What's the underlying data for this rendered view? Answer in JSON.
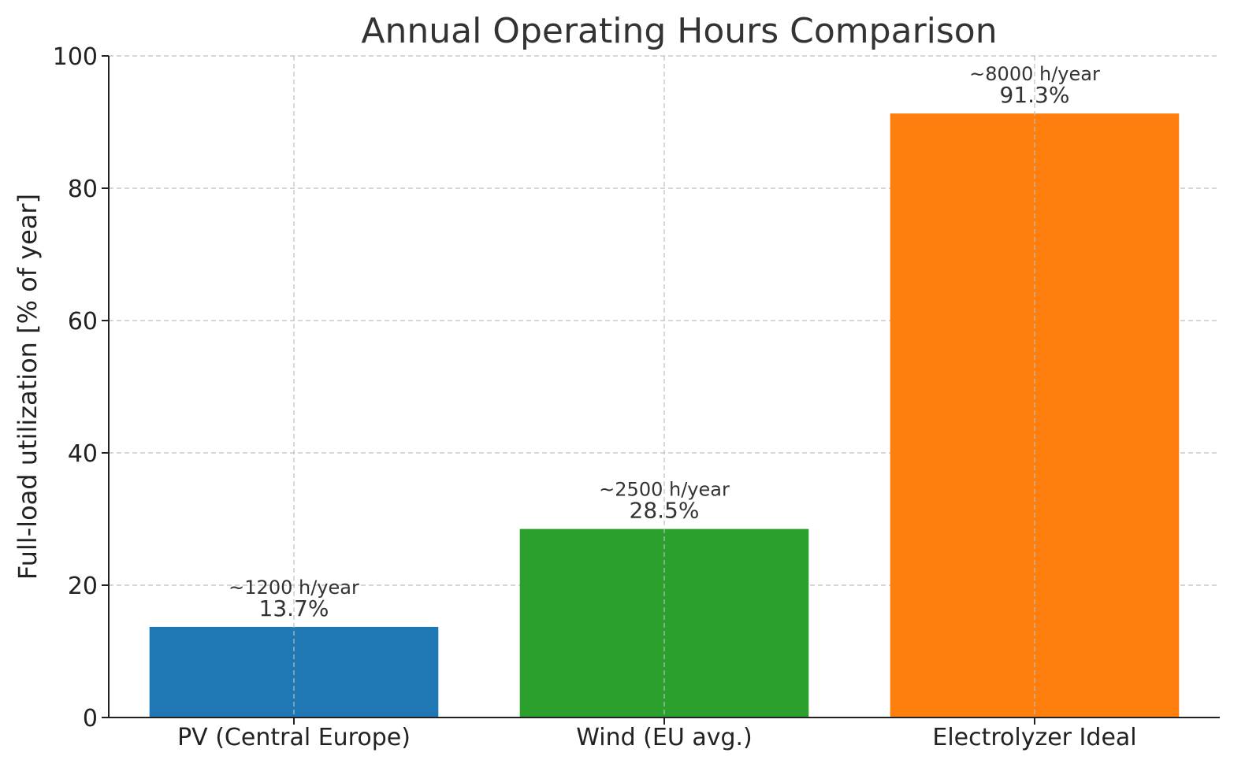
{
  "chart_data": {
    "type": "bar",
    "title": "Annual Operating Hours Comparison",
    "xlabel": "",
    "ylabel": "Full-load utilization [% of year]",
    "categories": [
      "PV (Central Europe)",
      "Wind (EU avg.)",
      "Electrolyzer Ideal"
    ],
    "values": [
      13.7,
      28.5,
      91.3
    ],
    "hours_labels": [
      "~1200 h/year",
      "~2500 h/year",
      "~8000 h/year"
    ],
    "value_labels": [
      "13.7%",
      "28.5%",
      "91.3%"
    ],
    "colors": [
      "#1f77b4",
      "#2ca02c",
      "#ff7f0e"
    ],
    "ylim": [
      0,
      100
    ],
    "yticks": [
      0,
      20,
      40,
      60,
      80,
      100
    ],
    "grid": true,
    "legend": "none"
  }
}
